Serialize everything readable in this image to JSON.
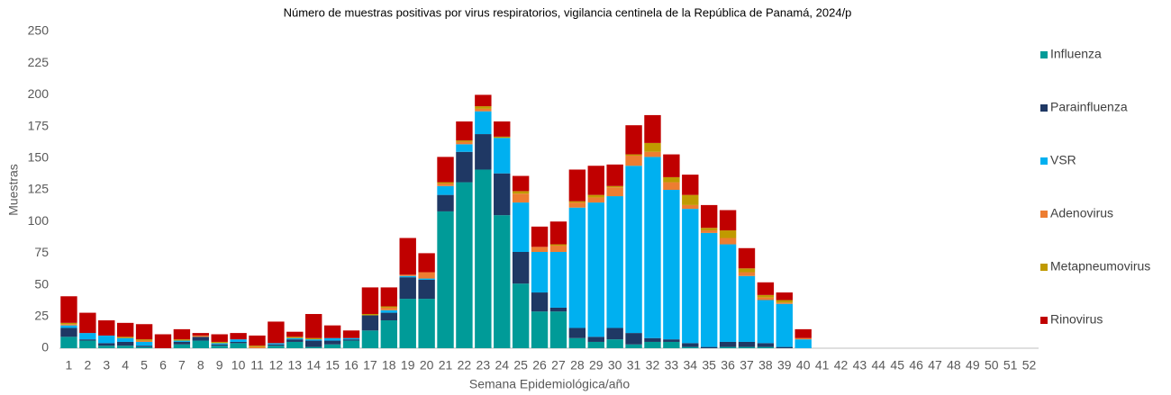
{
  "chart_data": {
    "type": "bar",
    "stacked": true,
    "title": "Número de muestras positivas por virus respiratorios, vigilancia centinela de la República de Panamá, 2024/p",
    "x_label": "Semana Epidemiológica/año",
    "y_label": "Muestras",
    "categories": [
      "1",
      "2",
      "3",
      "4",
      "5",
      "6",
      "7",
      "8",
      "9",
      "10",
      "11",
      "12",
      "13",
      "14",
      "15",
      "16",
      "17",
      "18",
      "19",
      "20",
      "21",
      "22",
      "23",
      "24",
      "25",
      "26",
      "27",
      "28",
      "29",
      "30",
      "31",
      "32",
      "33",
      "34",
      "35",
      "36",
      "37",
      "38",
      "39",
      "40",
      "41",
      "42",
      "43",
      "44",
      "45",
      "46",
      "47",
      "48",
      "49",
      "50",
      "51",
      "52"
    ],
    "ylim": [
      0,
      250
    ],
    "yticks": [
      0,
      25,
      50,
      75,
      100,
      125,
      150,
      175,
      200,
      225,
      250
    ],
    "grid": false,
    "legend": "right",
    "series": [
      {
        "name": "Influenza",
        "color": "#009b98",
        "values": [
          9,
          6,
          2,
          2,
          1,
          0,
          3,
          6,
          2,
          4,
          0,
          2,
          5,
          1,
          3,
          6,
          14,
          22,
          39,
          39,
          108,
          131,
          141,
          105,
          51,
          29,
          29,
          8,
          5,
          7,
          3,
          5,
          5,
          1,
          0,
          1,
          1,
          1,
          0,
          0,
          null,
          null,
          null,
          null,
          null,
          null,
          null,
          null,
          null,
          null,
          null,
          null
        ]
      },
      {
        "name": "Parainfluenza",
        "color": "#1f3864",
        "values": [
          7,
          1,
          2,
          3,
          1,
          0,
          2,
          3,
          1,
          1,
          0,
          1,
          2,
          5,
          3,
          1,
          12,
          6,
          17,
          15,
          13,
          24,
          28,
          33,
          25,
          15,
          3,
          8,
          4,
          9,
          9,
          3,
          2,
          3,
          1,
          4,
          4,
          3,
          1,
          0,
          null,
          null,
          null,
          null,
          null,
          null,
          null,
          null,
          null,
          null,
          null,
          null
        ]
      },
      {
        "name": "VSR",
        "color": "#00b0f0",
        "values": [
          2,
          5,
          6,
          3,
          3,
          0,
          1,
          0,
          1,
          2,
          0,
          1,
          1,
          1,
          2,
          1,
          0,
          2,
          1,
          1,
          7,
          6,
          18,
          28,
          39,
          32,
          44,
          95,
          106,
          104,
          132,
          143,
          118,
          106,
          90,
          77,
          52,
          34,
          34,
          7,
          null,
          null,
          null,
          null,
          null,
          null,
          null,
          null,
          null,
          null,
          null,
          null
        ]
      },
      {
        "name": "Adenovirus",
        "color": "#ed7d31",
        "values": [
          1,
          0,
          0,
          0,
          1,
          0,
          0,
          1,
          0,
          0,
          1,
          0,
          0,
          0,
          0,
          0,
          0,
          2,
          1,
          5,
          2,
          2,
          2,
          0,
          7,
          4,
          5,
          4,
          4,
          7,
          8,
          4,
          6,
          3,
          2,
          5,
          3,
          2,
          1,
          1,
          null,
          null,
          null,
          null,
          null,
          null,
          null,
          null,
          null,
          null,
          null,
          null
        ]
      },
      {
        "name": "Metapneumovirus",
        "color": "#c09a00",
        "values": [
          1,
          0,
          0,
          1,
          1,
          0,
          1,
          0,
          1,
          0,
          1,
          0,
          1,
          1,
          0,
          0,
          1,
          1,
          0,
          0,
          1,
          1,
          2,
          1,
          2,
          0,
          1,
          1,
          2,
          1,
          1,
          7,
          4,
          8,
          2,
          6,
          3,
          2,
          2,
          0,
          null,
          null,
          null,
          null,
          null,
          null,
          null,
          null,
          null,
          null,
          null,
          null
        ]
      },
      {
        "name": "Rinovirus",
        "color": "#c00000",
        "values": [
          21,
          16,
          12,
          11,
          12,
          11,
          8,
          2,
          6,
          5,
          8,
          17,
          4,
          19,
          10,
          6,
          21,
          15,
          29,
          15,
          20,
          15,
          9,
          12,
          12,
          16,
          18,
          25,
          23,
          17,
          23,
          22,
          18,
          16,
          18,
          16,
          16,
          10,
          6,
          7,
          null,
          null,
          null,
          null,
          null,
          null,
          null,
          null,
          null,
          null,
          null,
          null
        ]
      }
    ]
  }
}
